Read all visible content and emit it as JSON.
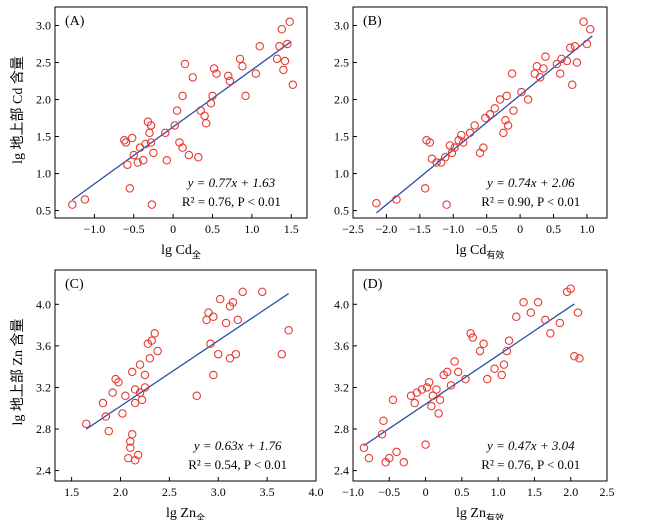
{
  "y_axis_label_top": "lg 地上部 Cd 含量",
  "y_axis_label_bottom": "lg 地上部 Zn 含量",
  "colors": {
    "points": "#e53a34",
    "fit_line": "#2c4fa8"
  },
  "chart_data": [
    {
      "type": "scatter",
      "panel": "(A)",
      "xlabel_main": "lg Cd",
      "xlabel_sub": "全",
      "xlim": [
        -1.5,
        1.7
      ],
      "ylim": [
        0.4,
        3.25
      ],
      "xticks": [
        -1.0,
        -0.5,
        0.0,
        0.5,
        1.0,
        1.5
      ],
      "yticks": [
        0.5,
        1.0,
        1.5,
        2.0,
        2.5,
        3.0
      ],
      "xtick_labels": [
        "−1.0",
        "−0.5",
        "0",
        "0.5",
        "1.0",
        "1.5"
      ],
      "ytick_labels": [
        "0.5",
        "1.0",
        "1.5",
        "2.0",
        "2.5",
        "3.0"
      ],
      "fit": {
        "slope": 0.77,
        "intercept": 1.63,
        "x_range": [
          -1.28,
          1.5
        ]
      },
      "equation": "y = 0.77x + 1.63",
      "stats": "R² = 0.76, P < 0.01",
      "points": [
        [
          -1.28,
          0.58
        ],
        [
          -1.12,
          0.65
        ],
        [
          -0.62,
          1.45
        ],
        [
          -0.6,
          1.42
        ],
        [
          -0.58,
          1.12
        ],
        [
          -0.55,
          0.8
        ],
        [
          -0.52,
          1.48
        ],
        [
          -0.5,
          1.25
        ],
        [
          -0.45,
          1.15
        ],
        [
          -0.42,
          1.35
        ],
        [
          -0.38,
          1.18
        ],
        [
          -0.35,
          1.4
        ],
        [
          -0.32,
          1.7
        ],
        [
          -0.3,
          1.55
        ],
        [
          -0.28,
          1.65
        ],
        [
          -0.28,
          1.42
        ],
        [
          -0.27,
          0.58
        ],
        [
          -0.25,
          1.28
        ],
        [
          -0.1,
          1.55
        ],
        [
          -0.08,
          1.18
        ],
        [
          0.02,
          1.65
        ],
        [
          0.05,
          1.85
        ],
        [
          0.08,
          1.42
        ],
        [
          0.12,
          1.35
        ],
        [
          0.12,
          2.05
        ],
        [
          0.15,
          2.48
        ],
        [
          0.2,
          1.25
        ],
        [
          0.25,
          2.3
        ],
        [
          0.32,
          1.22
        ],
        [
          0.35,
          1.85
        ],
        [
          0.4,
          1.78
        ],
        [
          0.42,
          1.68
        ],
        [
          0.48,
          1.95
        ],
        [
          0.5,
          2.05
        ],
        [
          0.52,
          2.42
        ],
        [
          0.55,
          2.35
        ],
        [
          0.7,
          2.32
        ],
        [
          0.72,
          2.25
        ],
        [
          0.85,
          2.55
        ],
        [
          0.88,
          2.45
        ],
        [
          0.92,
          2.05
        ],
        [
          1.05,
          2.35
        ],
        [
          1.1,
          2.72
        ],
        [
          1.32,
          2.55
        ],
        [
          1.35,
          2.72
        ],
        [
          1.38,
          2.95
        ],
        [
          1.4,
          2.4
        ],
        [
          1.42,
          2.52
        ],
        [
          1.45,
          2.75
        ],
        [
          1.48,
          3.05
        ],
        [
          1.52,
          2.2
        ]
      ]
    },
    {
      "type": "scatter",
      "panel": "(B)",
      "xlabel_main": "lg Cd",
      "xlabel_sub": "有效",
      "xlim": [
        -2.5,
        1.3
      ],
      "ylim": [
        0.4,
        3.25
      ],
      "xticks": [
        -2.5,
        -2.0,
        -1.5,
        -1.0,
        -0.5,
        0.0,
        0.5,
        1.0
      ],
      "yticks": [
        0.5,
        1.0,
        1.5,
        2.0,
        2.5,
        3.0
      ],
      "xtick_labels": [
        "−2.5",
        "−2.0",
        "−1.5",
        "−1.0",
        "−0.5",
        "0",
        "0.5",
        "1.0"
      ],
      "ytick_labels": [
        "0.5",
        "1.0",
        "1.5",
        "2.0",
        "2.5",
        "3.0"
      ],
      "fit": {
        "slope": 0.74,
        "intercept": 2.06,
        "x_range": [
          -2.15,
          1.08
        ]
      },
      "equation": "y = 0.74x + 2.06",
      "stats": "R² = 0.90, P < 0.01",
      "points": [
        [
          -2.15,
          0.6
        ],
        [
          -1.85,
          0.65
        ],
        [
          -1.42,
          0.8
        ],
        [
          -1.4,
          1.45
        ],
        [
          -1.35,
          1.42
        ],
        [
          -1.32,
          1.2
        ],
        [
          -1.25,
          1.15
        ],
        [
          -1.18,
          1.15
        ],
        [
          -1.12,
          1.22
        ],
        [
          -1.1,
          0.58
        ],
        [
          -1.05,
          1.38
        ],
        [
          -1.02,
          1.28
        ],
        [
          -0.98,
          1.35
        ],
        [
          -0.92,
          1.45
        ],
        [
          -0.88,
          1.52
        ],
        [
          -0.85,
          1.42
        ],
        [
          -0.75,
          1.55
        ],
        [
          -0.68,
          1.65
        ],
        [
          -0.6,
          1.28
        ],
        [
          -0.55,
          1.35
        ],
        [
          -0.52,
          1.75
        ],
        [
          -0.45,
          1.8
        ],
        [
          -0.38,
          1.88
        ],
        [
          -0.3,
          2.0
        ],
        [
          -0.25,
          1.55
        ],
        [
          -0.22,
          1.72
        ],
        [
          -0.2,
          2.05
        ],
        [
          -0.18,
          1.65
        ],
        [
          -0.12,
          2.35
        ],
        [
          -0.1,
          1.85
        ],
        [
          0.02,
          2.1
        ],
        [
          0.12,
          2.0
        ],
        [
          0.22,
          2.35
        ],
        [
          0.25,
          2.45
        ],
        [
          0.3,
          2.3
        ],
        [
          0.35,
          2.42
        ],
        [
          0.38,
          2.58
        ],
        [
          0.55,
          2.48
        ],
        [
          0.6,
          2.35
        ],
        [
          0.62,
          2.55
        ],
        [
          0.7,
          2.52
        ],
        [
          0.75,
          2.7
        ],
        [
          0.78,
          2.2
        ],
        [
          0.82,
          2.72
        ],
        [
          0.85,
          2.5
        ],
        [
          0.95,
          3.05
        ],
        [
          1.0,
          2.75
        ],
        [
          1.05,
          2.95
        ]
      ]
    },
    {
      "type": "scatter",
      "panel": "(C)",
      "xlabel_main": "lg Zn",
      "xlabel_sub": "全",
      "xlim": [
        1.33,
        4.0
      ],
      "ylim": [
        2.3,
        4.33
      ],
      "xticks": [
        1.5,
        2.0,
        2.5,
        3.0,
        3.5,
        4.0
      ],
      "yticks": [
        2.4,
        2.8,
        3.2,
        3.6,
        4.0
      ],
      "xtick_labels": [
        "1.5",
        "2.0",
        "2.5",
        "3.0",
        "3.5",
        "4.0"
      ],
      "ytick_labels": [
        "2.4",
        "2.8",
        "3.2",
        "3.6",
        "4.0"
      ],
      "fit": {
        "slope": 0.63,
        "intercept": 1.76,
        "x_range": [
          1.65,
          3.72
        ]
      },
      "equation": "y = 0.63x + 1.76",
      "stats": "R² = 0.54, P < 0.01",
      "points": [
        [
          1.65,
          2.85
        ],
        [
          1.82,
          3.05
        ],
        [
          1.85,
          2.92
        ],
        [
          1.88,
          2.78
        ],
        [
          1.92,
          3.15
        ],
        [
          1.95,
          3.28
        ],
        [
          1.98,
          3.25
        ],
        [
          2.02,
          2.95
        ],
        [
          2.05,
          3.12
        ],
        [
          2.08,
          2.52
        ],
        [
          2.1,
          2.68
        ],
        [
          2.1,
          2.62
        ],
        [
          2.12,
          2.75
        ],
        [
          2.12,
          3.35
        ],
        [
          2.15,
          3.18
        ],
        [
          2.15,
          3.05
        ],
        [
          2.15,
          2.5
        ],
        [
          2.18,
          2.55
        ],
        [
          2.2,
          3.42
        ],
        [
          2.2,
          3.15
        ],
        [
          2.22,
          3.08
        ],
        [
          2.25,
          3.2
        ],
        [
          2.25,
          3.32
        ],
        [
          2.28,
          3.62
        ],
        [
          2.3,
          3.48
        ],
        [
          2.32,
          3.65
        ],
        [
          2.35,
          3.72
        ],
        [
          2.38,
          3.55
        ],
        [
          2.78,
          3.12
        ],
        [
          2.88,
          3.85
        ],
        [
          2.9,
          3.92
        ],
        [
          2.92,
          3.62
        ],
        [
          2.95,
          3.32
        ],
        [
          2.95,
          3.88
        ],
        [
          3.0,
          3.52
        ],
        [
          3.02,
          4.05
        ],
        [
          3.08,
          3.82
        ],
        [
          3.12,
          3.48
        ],
        [
          3.12,
          3.98
        ],
        [
          3.15,
          4.02
        ],
        [
          3.18,
          3.52
        ],
        [
          3.2,
          3.85
        ],
        [
          3.25,
          4.12
        ],
        [
          3.45,
          4.12
        ],
        [
          3.65,
          3.52
        ],
        [
          3.72,
          3.75
        ]
      ]
    },
    {
      "type": "scatter",
      "panel": "(D)",
      "xlabel_main": "lg Zn",
      "xlabel_sub": "有效",
      "xlim": [
        -1.0,
        2.5
      ],
      "ylim": [
        2.3,
        4.33
      ],
      "xticks": [
        -1.0,
        -0.5,
        0.0,
        0.5,
        1.0,
        1.5,
        2.0,
        2.5
      ],
      "yticks": [
        2.4,
        2.8,
        3.2,
        3.6,
        4.0
      ],
      "xtick_labels": [
        "−1.0",
        "−0.5",
        "0",
        "0.5",
        "1.0",
        "1.5",
        "2.0",
        "2.5"
      ],
      "ytick_labels": [
        "2.4",
        "2.8",
        "3.2",
        "3.6",
        "4.0"
      ],
      "fit": {
        "slope": 0.47,
        "intercept": 3.04,
        "x_range": [
          -0.85,
          2.05
        ]
      },
      "equation": "y = 0.47x + 3.04",
      "stats": "R² = 0.76, P < 0.01",
      "points": [
        [
          -0.85,
          2.62
        ],
        [
          -0.78,
          2.52
        ],
        [
          -0.6,
          2.75
        ],
        [
          -0.58,
          2.88
        ],
        [
          -0.55,
          2.48
        ],
        [
          -0.5,
          2.52
        ],
        [
          -0.45,
          3.08
        ],
        [
          -0.4,
          2.58
        ],
        [
          -0.3,
          2.48
        ],
        [
          -0.2,
          3.12
        ],
        [
          -0.15,
          3.05
        ],
        [
          -0.12,
          3.15
        ],
        [
          -0.05,
          3.18
        ],
        [
          0.0,
          2.65
        ],
        [
          0.02,
          3.2
        ],
        [
          0.05,
          3.25
        ],
        [
          0.08,
          3.02
        ],
        [
          0.1,
          3.12
        ],
        [
          0.15,
          3.18
        ],
        [
          0.18,
          2.95
        ],
        [
          0.2,
          3.08
        ],
        [
          0.25,
          3.32
        ],
        [
          0.3,
          3.35
        ],
        [
          0.35,
          3.22
        ],
        [
          0.4,
          3.45
        ],
        [
          0.45,
          3.35
        ],
        [
          0.55,
          3.28
        ],
        [
          0.62,
          3.72
        ],
        [
          0.65,
          3.68
        ],
        [
          0.75,
          3.55
        ],
        [
          0.8,
          3.62
        ],
        [
          0.85,
          3.28
        ],
        [
          0.95,
          3.38
        ],
        [
          1.05,
          3.32
        ],
        [
          1.08,
          3.42
        ],
        [
          1.12,
          3.55
        ],
        [
          1.15,
          3.65
        ],
        [
          1.25,
          3.88
        ],
        [
          1.35,
          4.02
        ],
        [
          1.45,
          3.92
        ],
        [
          1.55,
          4.02
        ],
        [
          1.65,
          3.85
        ],
        [
          1.72,
          3.72
        ],
        [
          1.85,
          3.82
        ],
        [
          1.95,
          4.12
        ],
        [
          2.0,
          4.15
        ],
        [
          2.05,
          3.5
        ],
        [
          2.1,
          3.92
        ],
        [
          2.12,
          3.48
        ]
      ]
    }
  ]
}
